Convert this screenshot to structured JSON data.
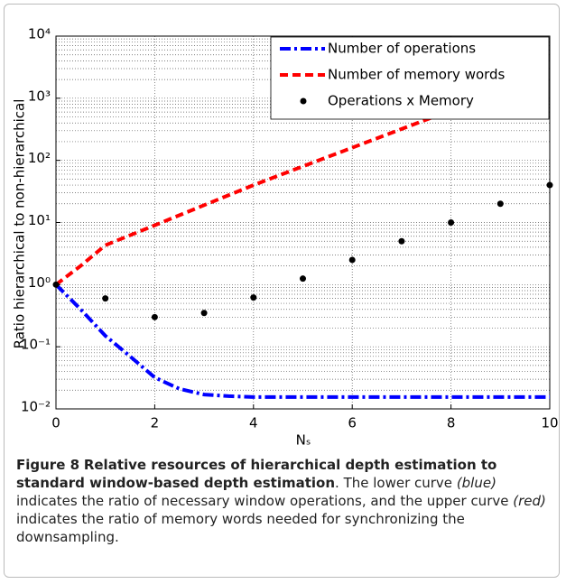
{
  "chart_data": {
    "type": "line",
    "ylabel": "Ratio hierarchical to non-hierarchical",
    "xlabel": "Nₛ",
    "xlim": [
      0,
      10
    ],
    "xticks": [
      0,
      2,
      4,
      6,
      8,
      10
    ],
    "ylim": [
      0.01,
      10000
    ],
    "log_y": true,
    "grid": true,
    "legend": "upper right",
    "yticks": [
      {
        "value": 0.01,
        "label": "10⁻²"
      },
      {
        "value": 0.1,
        "label": "10⁻¹"
      },
      {
        "value": 1,
        "label": "10⁰"
      },
      {
        "value": 10,
        "label": "10¹"
      },
      {
        "value": 100,
        "label": "10²"
      },
      {
        "value": 1000,
        "label": "10³"
      },
      {
        "value": 10000,
        "label": "10⁴"
      }
    ],
    "series": [
      {
        "name": "Number of operations",
        "color": "#0000ff",
        "style": "dashdot",
        "x": [
          0,
          0.5,
          1,
          1.5,
          2,
          2.5,
          3,
          3.5,
          4,
          5,
          6,
          7,
          8,
          9,
          10
        ],
        "values": [
          1,
          0.4,
          0.15,
          0.07,
          0.032,
          0.021,
          0.017,
          0.016,
          0.0155,
          0.0155,
          0.0155,
          0.0155,
          0.0155,
          0.0155,
          0.0155
        ]
      },
      {
        "name": "Number of memory words",
        "color": "#ff0000",
        "style": "dashed",
        "x": [
          0,
          0.5,
          1,
          2,
          3,
          4,
          5,
          6,
          7,
          8
        ],
        "values": [
          1,
          2,
          4.3,
          9,
          19,
          40,
          80,
          160,
          320,
          640
        ]
      },
      {
        "name": "Operations x Memory",
        "color": "#000000",
        "style": "markers",
        "x": [
          0,
          1,
          2,
          3,
          4,
          5,
          6,
          7,
          8,
          9,
          10
        ],
        "values": [
          1,
          0.6,
          0.3,
          0.35,
          0.62,
          1.25,
          2.5,
          5,
          10,
          20,
          40
        ]
      }
    ]
  },
  "caption": {
    "label": "Figure 8",
    "title": "Relative resources of hierarchical depth estimation to standard window-based depth estimation",
    "runs": [
      ". The lower curve ",
      "(blue)",
      " indicates the ratio of necessary window operations, and the upper curve ",
      "(red)",
      " indicates the ratio of memory words needed for synchronizing the downsampling."
    ]
  }
}
